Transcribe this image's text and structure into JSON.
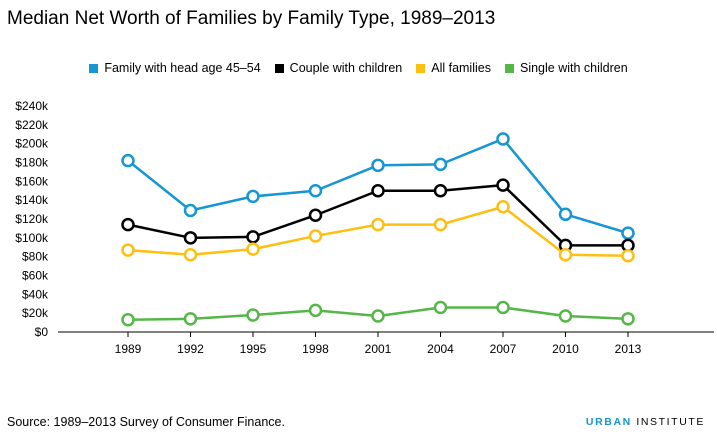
{
  "title": "Median Net Worth of Families by Family Type, 1989–2013",
  "source": "Source: 1989–2013 Survey of Consumer Finance.",
  "logo": {
    "part1": "URBAN",
    "part2": " INSTITUTE"
  },
  "chart_data": {
    "type": "line",
    "title": "Median Net Worth of Families by Family Type, 1989–2013",
    "xlabel": "",
    "ylabel": "",
    "x": [
      "1989",
      "1992",
      "1995",
      "1998",
      "2001",
      "2004",
      "2007",
      "2010",
      "2013"
    ],
    "ylim": [
      0,
      240000
    ],
    "yticks": [
      0,
      20000,
      40000,
      60000,
      80000,
      100000,
      120000,
      140000,
      160000,
      180000,
      200000,
      220000,
      240000
    ],
    "ytick_labels": [
      "$0",
      "$20k",
      "$40k",
      "$60k",
      "$80k",
      "$100k",
      "$120k",
      "$140k",
      "$160k",
      "$180k",
      "$200k",
      "$220k",
      "$240k"
    ],
    "legend_position": "top",
    "grid": false,
    "series": [
      {
        "name": "Family with head age 45–54",
        "color": "#1696d2",
        "values": [
          182000,
          129000,
          144000,
          150000,
          177000,
          178000,
          205000,
          125000,
          105000
        ]
      },
      {
        "name": "Couple with children",
        "color": "#000000",
        "values": [
          114000,
          100000,
          101000,
          124000,
          150000,
          150000,
          156000,
          92000,
          92000
        ]
      },
      {
        "name": "All families",
        "color": "#fdbf11",
        "values": [
          87000,
          82000,
          88000,
          102000,
          114000,
          114000,
          133000,
          82000,
          81000
        ]
      },
      {
        "name": "Single with children",
        "color": "#55b748",
        "values": [
          13000,
          14000,
          18000,
          23000,
          17000,
          26000,
          26000,
          17000,
          14000
        ]
      }
    ]
  }
}
